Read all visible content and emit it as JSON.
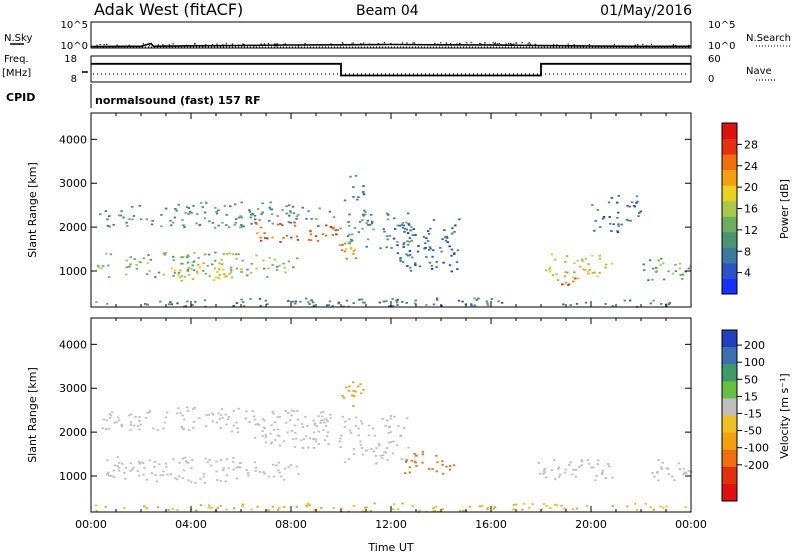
{
  "header": {
    "station": "Adak West (fitACF)",
    "beam": "Beam 04",
    "date": "01/May/2016"
  },
  "strips": {
    "nsky_label": "N.Sky",
    "nsky_ticks": [
      "10^5",
      "10^0"
    ],
    "nsearch_label": "N.Search",
    "nsearch_ticks": [
      "10^5",
      "10^0"
    ],
    "freq_label": "Freq.",
    "freq_unit": "[MHz]",
    "freq_ticks": [
      18,
      8
    ],
    "nave_label": "Nave",
    "nave_ticks": [
      60,
      0
    ],
    "cpid_label": "CPID",
    "cpid_text": "normalsound (fast) 157 RF"
  },
  "chart_data": [
    {
      "type": "line",
      "name": "noise-panel",
      "x_range_hours": [
        0,
        24
      ],
      "series": [
        {
          "name": "N.Sky",
          "x": [
            0,
            2,
            2.4,
            2.5,
            4,
            6,
            8,
            10,
            12,
            14,
            16,
            18,
            20,
            22,
            24
          ],
          "y_log10": [
            0.1,
            0.15,
            0.7,
            0.15,
            0.25,
            0.3,
            0.4,
            0.45,
            0.5,
            0.45,
            0.4,
            0.3,
            0.2,
            0.15,
            0.15
          ]
        },
        {
          "name": "N.Search",
          "x": [
            0,
            24
          ],
          "y_log10": [
            0.1,
            0.1
          ]
        }
      ]
    },
    {
      "type": "line",
      "name": "frequency-panel",
      "x_range_hours": [
        0,
        24
      ],
      "series": [
        {
          "name": "Freq.",
          "x": [
            0,
            10,
            10,
            18,
            18,
            24
          ],
          "y": [
            15,
            15,
            10.5,
            10.5,
            15,
            15
          ]
        },
        {
          "name": "Nave",
          "x": [
            0,
            24
          ],
          "y": [
            10,
            10
          ]
        }
      ]
    },
    {
      "type": "heatmap",
      "name": "power-panel",
      "xlabel": "",
      "ylabel": "Slant Range [km]",
      "x_range_hours": [
        0,
        24
      ],
      "ylim": [
        180,
        4600
      ],
      "yticks": [
        1000,
        2000,
        3000,
        4000
      ],
      "colorbar": {
        "label": "Power [dB]",
        "ticks": [
          4,
          8,
          12,
          16,
          20,
          24,
          28
        ],
        "range": [
          0,
          32
        ],
        "colors": [
          "#1530ff",
          "#2d52c8",
          "#3a7aa0",
          "#4a9470",
          "#6cb05e",
          "#a9c94c",
          "#e8d21c",
          "#f5a010",
          "#f07010",
          "#e63010",
          "#e01010"
        ]
      },
      "echo_regions": [
        {
          "x": [
            0.3,
            9.9
          ],
          "y": [
            2000,
            2600
          ],
          "value": 10
        },
        {
          "x": [
            6.5,
            9.9
          ],
          "y": [
            1650,
            2150
          ],
          "value": 26
        },
        {
          "x": [
            0.2,
            8.5
          ],
          "y": [
            850,
            1450
          ],
          "value": 14
        },
        {
          "x": [
            3.0,
            6.0
          ],
          "y": [
            800,
            1200
          ],
          "value": 20
        },
        {
          "x": [
            9.9,
            10.7
          ],
          "y": [
            1200,
            1800
          ],
          "value": 22
        },
        {
          "x": [
            9.9,
            12.8
          ],
          "y": [
            1500,
            2400
          ],
          "value": 10
        },
        {
          "x": [
            10.0,
            10.9
          ],
          "y": [
            2500,
            3200
          ],
          "value": 8
        },
        {
          "x": [
            12.0,
            14.8
          ],
          "y": [
            1000,
            2200
          ],
          "value": 6
        },
        {
          "x": [
            17.8,
            21.0
          ],
          "y": [
            850,
            1400
          ],
          "value": 18
        },
        {
          "x": [
            18.3,
            19.4
          ],
          "y": [
            700,
            1000
          ],
          "value": 26
        },
        {
          "x": [
            22.0,
            24.0
          ],
          "y": [
            800,
            1400
          ],
          "value": 12
        },
        {
          "x": [
            20.0,
            22.0
          ],
          "y": [
            1900,
            2800
          ],
          "value": 6
        },
        {
          "x": [
            0.0,
            24.0
          ],
          "y": [
            200,
            400
          ],
          "value": 8
        }
      ]
    },
    {
      "type": "heatmap",
      "name": "velocity-panel",
      "xlabel": "Time UT",
      "ylabel": "Slant Range [km]",
      "x_range_hours": [
        0,
        24
      ],
      "xticks": [
        "00:00",
        "04:00",
        "08:00",
        "12:00",
        "16:00",
        "20:00",
        "00:00"
      ],
      "ylim": [
        180,
        4600
      ],
      "yticks": [
        1000,
        2000,
        3000,
        4000
      ],
      "colorbar": {
        "label": "Velocity [m s⁻¹]",
        "ticks": [
          200,
          100,
          50,
          15,
          -15,
          -50,
          -100,
          -200
        ],
        "colors": [
          "#2040c0",
          "#3a70b0",
          "#3e9a6a",
          "#66c040",
          "#bfbfbf",
          "#f0c020",
          "#f5a010",
          "#f07010",
          "#e03010",
          "#e01010"
        ]
      },
      "echo_regions": [
        {
          "x": [
            0.3,
            9.9
          ],
          "y": [
            2000,
            2600
          ],
          "value": 0
        },
        {
          "x": [
            6.5,
            9.9
          ],
          "y": [
            1650,
            2150
          ],
          "value": 0
        },
        {
          "x": [
            0.2,
            8.5
          ],
          "y": [
            850,
            1450
          ],
          "value": 0
        },
        {
          "x": [
            9.9,
            12.8
          ],
          "y": [
            1300,
            2400
          ],
          "value": 0
        },
        {
          "x": [
            12.4,
            14.6
          ],
          "y": [
            1000,
            1600
          ],
          "value": -80
        },
        {
          "x": [
            10.0,
            10.9
          ],
          "y": [
            2500,
            3200
          ],
          "value": -60
        },
        {
          "x": [
            17.8,
            21.0
          ],
          "y": [
            850,
            1400
          ],
          "value": 0
        },
        {
          "x": [
            22.0,
            24.0
          ],
          "y": [
            900,
            1400
          ],
          "value": 0
        },
        {
          "x": [
            0.0,
            24.0
          ],
          "y": [
            200,
            400
          ],
          "value": -30
        }
      ]
    }
  ]
}
